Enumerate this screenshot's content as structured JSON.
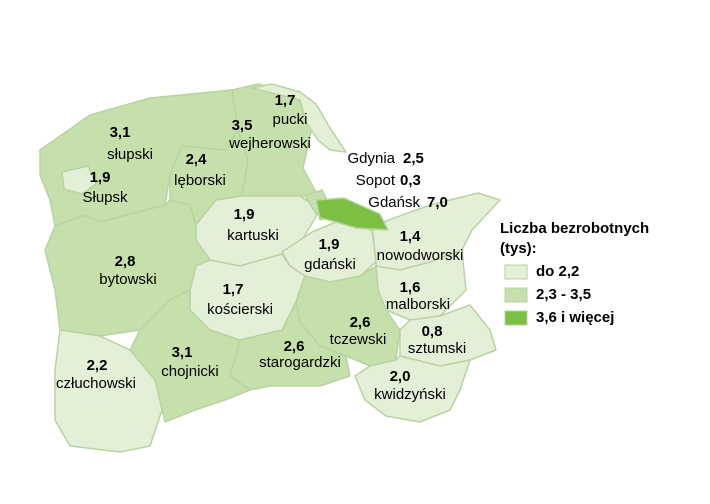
{
  "map": {
    "regions": [
      {
        "name": "słupski",
        "value": "3,1",
        "color": "#c5e0aa"
      },
      {
        "name": "Słupsk",
        "value": "1,9",
        "color": "#e3f0d7"
      },
      {
        "name": "lęborski",
        "value": "2,4",
        "color": "#c5e0aa"
      },
      {
        "name": "wejherowski",
        "value": "3,5",
        "color": "#c5e0aa"
      },
      {
        "name": "pucki",
        "value": "1,7",
        "color": "#e3f0d7"
      },
      {
        "name": "kartuski",
        "value": "1,9",
        "color": "#e3f0d7"
      },
      {
        "name": "bytowski",
        "value": "2,8",
        "color": "#c5e0aa"
      },
      {
        "name": "gdański",
        "value": "1,9",
        "color": "#e3f0d7"
      },
      {
        "name": "nowodworski",
        "value": "1,4",
        "color": "#e3f0d7"
      },
      {
        "name": "kościerski",
        "value": "1,7",
        "color": "#e3f0d7"
      },
      {
        "name": "malborski",
        "value": "1,6",
        "color": "#e3f0d7"
      },
      {
        "name": "tczewski",
        "value": "2,6",
        "color": "#c5e0aa"
      },
      {
        "name": "sztumski",
        "value": "0,8",
        "color": "#e3f0d7"
      },
      {
        "name": "starogardzki",
        "value": "2,6",
        "color": "#c5e0aa"
      },
      {
        "name": "chojnicki",
        "value": "3,1",
        "color": "#c5e0aa"
      },
      {
        "name": "człuchowski",
        "value": "2,2",
        "color": "#e3f0d7"
      },
      {
        "name": "kwidzyński",
        "value": "2,0",
        "color": "#e3f0d7"
      },
      {
        "name": "Gdynia",
        "value": "2,5",
        "color": "#c5e0aa"
      },
      {
        "name": "Sopot",
        "value": "0,3",
        "color": "#e3f0d7"
      },
      {
        "name": "Gdańsk",
        "value": "7,0",
        "color": "#7cc043"
      }
    ],
    "legend": {
      "title": "Liczba bezrobotnych",
      "unit": "(tys):",
      "items": [
        {
          "label": "do 2,2",
          "color": "#e3f0d7"
        },
        {
          "label": "2,3 - 3,5",
          "color": "#c5e0aa"
        },
        {
          "label": "3,6 i więcej",
          "color": "#7cc043"
        }
      ]
    }
  }
}
